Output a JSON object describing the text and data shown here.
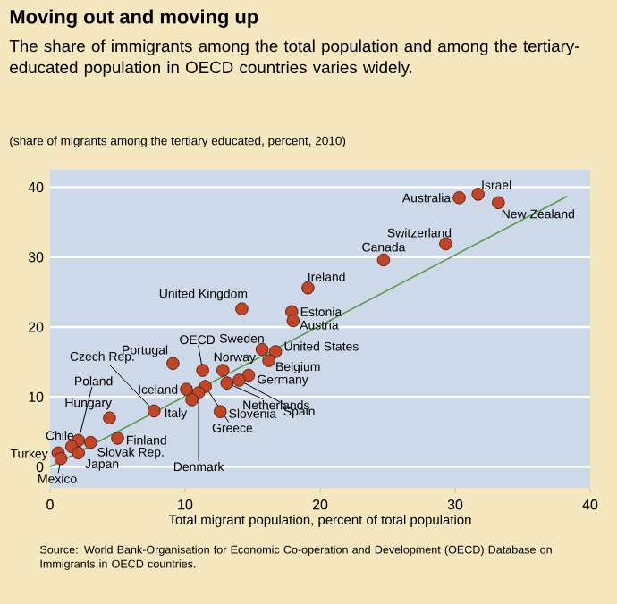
{
  "chart_data": {
    "type": "scatter",
    "title": "Moving out and moving up",
    "subtitle": "The share of immigrants among the total population and among the tertiary-educated population in OECD countries varies widely.",
    "ylabel": "(share of migrants among the tertiary educated, percent, 2010)",
    "xlabel": "Total migrant population, percent of total population",
    "xlim": [
      0,
      40
    ],
    "ylim": [
      -3,
      42.5
    ],
    "xticks": [
      0,
      10,
      20,
      30,
      40
    ],
    "yticks": [
      0,
      10,
      20,
      30,
      40
    ],
    "grid": "y",
    "series": [
      {
        "type": "line",
        "color": "#5a9a4a",
        "x": [
          0,
          38.3
        ],
        "values": [
          0,
          38.7
        ]
      },
      {
        "marker": "circle",
        "color": "#c0462a",
        "x": [
          30.3,
          31.7,
          33.2,
          29.3,
          24.7,
          19.1,
          17.9,
          18.0,
          14.2,
          15.7,
          16.7,
          16.2,
          9.1,
          11.3,
          12.8,
          14.7,
          10.1,
          13.1,
          14.0,
          11.5,
          11.0,
          12.6,
          10.5,
          7.7,
          4.4,
          2.1,
          5.0,
          3.0,
          1.6,
          0.6,
          2.1,
          0.8
        ],
        "values": [
          38.5,
          39.0,
          37.8,
          31.9,
          29.6,
          25.6,
          22.2,
          20.9,
          22.6,
          16.8,
          16.5,
          15.2,
          14.8,
          13.8,
          13.8,
          13.1,
          11.1,
          12.0,
          12.4,
          11.5,
          10.6,
          7.9,
          9.6,
          8.0,
          7.0,
          3.8,
          4.1,
          3.5,
          2.9,
          2.0,
          2.0,
          1.2
        ]
      }
    ],
    "annotations": [
      {
        "text": "Australia",
        "x": 30.3,
        "y": 38.5
      },
      {
        "text": "Israel",
        "x": 31.7,
        "y": 39.0
      },
      {
        "text": "New Zealand",
        "x": 33.2,
        "y": 37.8
      },
      {
        "text": "Switzerland",
        "x": 29.3,
        "y": 31.9
      },
      {
        "text": "Canada",
        "x": 24.7,
        "y": 29.6
      },
      {
        "text": "Ireland",
        "x": 19.1,
        "y": 25.6
      },
      {
        "text": "Estonia",
        "x": 17.9,
        "y": 22.2
      },
      {
        "text": "Austria",
        "x": 18.0,
        "y": 20.9
      },
      {
        "text": "United Kingdom",
        "x": 14.2,
        "y": 22.6
      },
      {
        "text": "Sweden",
        "x": 15.7,
        "y": 16.8
      },
      {
        "text": "United States",
        "x": 16.7,
        "y": 16.5
      },
      {
        "text": "Belgium",
        "x": 16.2,
        "y": 15.2
      },
      {
        "text": "Portugal",
        "x": 9.1,
        "y": 14.8
      },
      {
        "text": "OECD",
        "x": 11.3,
        "y": 13.8
      },
      {
        "text": "Norway",
        "x": 12.8,
        "y": 13.8
      },
      {
        "text": "Germany",
        "x": 14.7,
        "y": 13.1
      },
      {
        "text": "Iceland",
        "x": 10.1,
        "y": 11.1
      },
      {
        "text": "Netherlands",
        "x": 13.1,
        "y": 12.0
      },
      {
        "text": "Spain",
        "x": 14.0,
        "y": 12.4
      },
      {
        "text": "Greece",
        "x": 11.5,
        "y": 11.5
      },
      {
        "text": "Denmark",
        "x": 11.0,
        "y": 10.6
      },
      {
        "text": "Slovenia",
        "x": 12.6,
        "y": 7.9
      },
      {
        "text": "Italy",
        "x": 10.5,
        "y": 9.6
      },
      {
        "text": "Czech Rep.",
        "x": 7.7,
        "y": 8.0
      },
      {
        "text": "Hungary",
        "x": 4.4,
        "y": 7.0
      },
      {
        "text": "Poland",
        "x": 2.1,
        "y": 3.8
      },
      {
        "text": "Finland",
        "x": 5.0,
        "y": 4.1
      },
      {
        "text": "Slovak Rep.",
        "x": 3.0,
        "y": 3.5
      },
      {
        "text": "Chile",
        "x": 1.6,
        "y": 2.9
      },
      {
        "text": "Turkey",
        "x": 0.6,
        "y": 2.0
      },
      {
        "text": "Japan",
        "x": 2.1,
        "y": 2.0
      },
      {
        "text": "Mexico",
        "x": 0.8,
        "y": 1.2
      },
      "Source: World Bank-Organisation for Economic Co-operation and Development (OECD) Database on Immigrants in OECD countries."
    ]
  }
}
